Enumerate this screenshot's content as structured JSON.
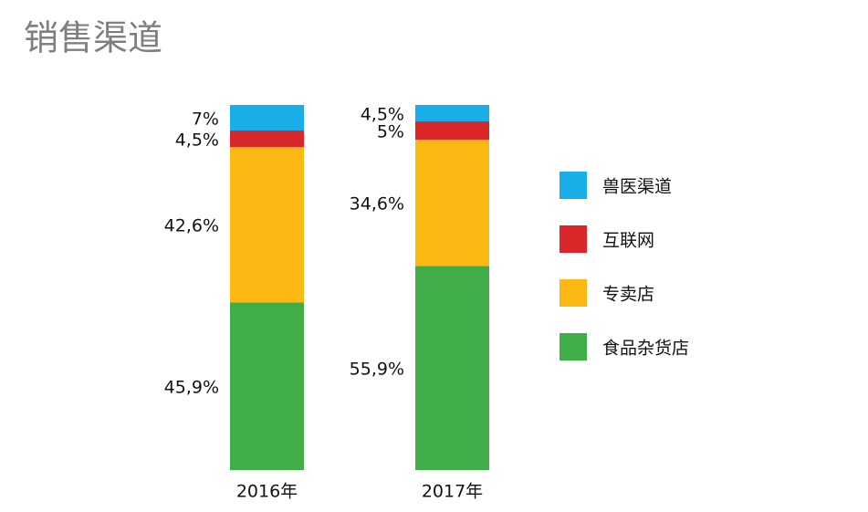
{
  "chart_data": {
    "type": "stacked_bar",
    "title": "销售渠道",
    "categories": [
      "2016年",
      "2017年"
    ],
    "series": [
      {
        "name": "食品杂货店",
        "color": "#41ad49",
        "values": [
          45.9,
          55.9
        ],
        "value_labels": [
          "45,9%",
          "55,9%"
        ]
      },
      {
        "name": "专卖店",
        "color": "#fdb913",
        "values": [
          42.6,
          34.6
        ],
        "value_labels": [
          "42,6%",
          "34,6%"
        ]
      },
      {
        "name": "互联网",
        "color": "#d9272a",
        "values": [
          4.5,
          5
        ],
        "value_labels": [
          "4,5%",
          "5%"
        ]
      },
      {
        "name": "兽医渠道",
        "color": "#1aaee9",
        "values": [
          7,
          4.5
        ],
        "value_labels": [
          "7%",
          "4,5%"
        ]
      }
    ],
    "legend": "right"
  }
}
